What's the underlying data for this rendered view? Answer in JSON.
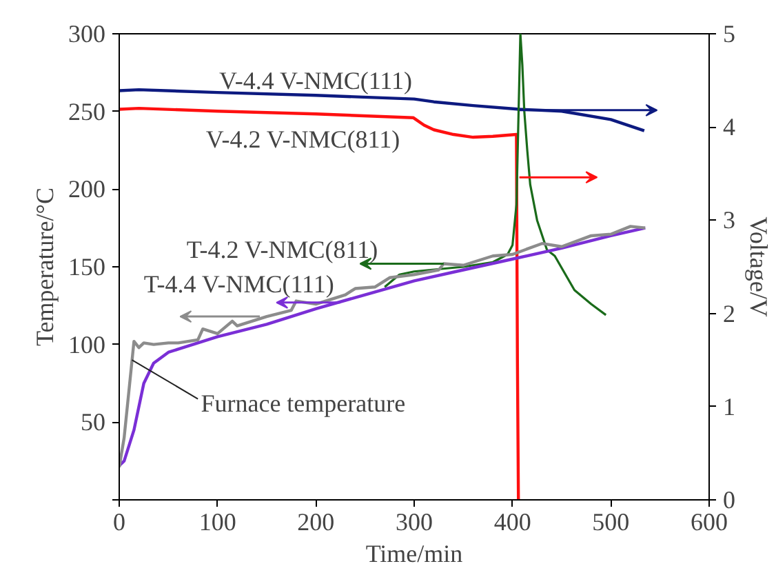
{
  "chart_data": {
    "type": "line",
    "xlabel": "Time/min",
    "ylabel": "Temperature/°C",
    "y2label": "Voltage/V",
    "xlim": [
      0,
      600
    ],
    "xticks": [
      0,
      100,
      200,
      300,
      400,
      500,
      600
    ],
    "ylim": [
      0,
      300
    ],
    "yticks": [
      {
        "value": 0,
        "label": null
      },
      50,
      100,
      150,
      200,
      250,
      300
    ],
    "y2lim": [
      0,
      5
    ],
    "y2ticks": [
      0,
      1,
      2,
      3,
      4,
      5
    ],
    "grid": false,
    "marker": "none",
    "line_style": "solid",
    "series": [
      {
        "name": "V-4.4 V-NMC(111)",
        "color": "#0d1a80",
        "axis": "y2",
        "x": [
          0,
          20,
          100,
          200,
          300,
          320,
          360,
          407,
          450,
          500,
          534
        ],
        "values": [
          4.39,
          4.4,
          4.37,
          4.34,
          4.3,
          4.27,
          4.23,
          4.19,
          4.17,
          4.08,
          3.96
        ]
      },
      {
        "name": "V-4.2 V-NMC(811)",
        "color": "#ff1010",
        "axis": "y2",
        "x": [
          0,
          20,
          100,
          200,
          299,
          310,
          320,
          340,
          360,
          380,
          404,
          405,
          406
        ],
        "values": [
          4.19,
          4.2,
          4.17,
          4.14,
          4.1,
          4.02,
          3.97,
          3.92,
          3.89,
          3.9,
          3.92,
          1.5,
          0
        ]
      },
      {
        "name": "T-4.2 V-NMC(811)",
        "color": "#1a6b1a",
        "x": [
          270,
          285,
          300,
          350,
          380,
          395,
          400,
          404,
          408,
          410,
          412,
          415,
          418,
          425,
          435,
          443,
          463,
          480,
          495
        ],
        "values": [
          137,
          145,
          147,
          150,
          153,
          158,
          164,
          190,
          300,
          280,
          250,
          225,
          203,
          180,
          161,
          157,
          135,
          126,
          119
        ]
      },
      {
        "name": "T-4.4 V-NMC(111)",
        "color": "#7a2fd6",
        "x": [
          0,
          5,
          15,
          25,
          35,
          50,
          75,
          100,
          150,
          200,
          250,
          300,
          350,
          400,
          450,
          500,
          535
        ],
        "values": [
          22,
          25,
          45,
          75,
          88,
          95,
          100,
          105,
          113,
          123,
          132,
          141,
          148,
          155,
          162,
          170,
          175
        ]
      },
      {
        "name": "Furnace temperature",
        "color": "#8c8c8c",
        "x": [
          0,
          5,
          15,
          20,
          25,
          35,
          50,
          60,
          80,
          85,
          100,
          115,
          120,
          150,
          175,
          180,
          200,
          230,
          240,
          260,
          275,
          300,
          325,
          330,
          350,
          380,
          400,
          430,
          450,
          480,
          500,
          520,
          535
        ],
        "values": [
          21,
          40,
          102,
          98,
          101,
          100,
          101,
          101,
          103,
          110,
          107,
          115,
          112,
          118,
          122,
          128,
          126,
          132,
          136,
          137,
          143,
          145,
          148,
          152,
          151,
          157,
          158,
          165,
          163,
          170,
          171,
          176,
          175
        ]
      }
    ]
  }
}
